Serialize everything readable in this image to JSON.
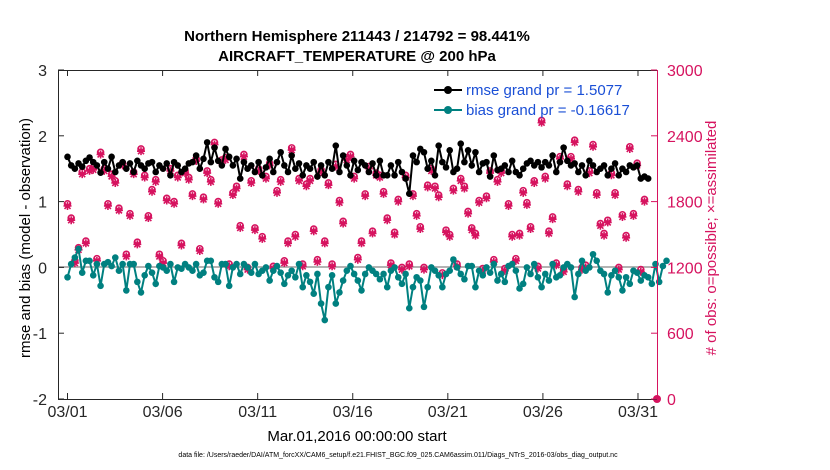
{
  "chart_data": {
    "type": "line",
    "title": "Northern Hemisphere 211443 / 214792 = 98.441%",
    "subtitle": "AIRCRAFT_TEMPERATURE @ 200 hPa",
    "xlabel": "Mar.01,2016 00:00:00 start",
    "ylabel": "rmse and bias (model - observation)",
    "y2label": "# of obs: o=possible; ×=assimilated",
    "footnote": "data file: /Users/raeder/DAI/ATM_forcXX/CAM6_setup/f.e21.FHIST_BGC.f09_025.CAM6assim.011/Diags_NTrS_2016-03/obs_diag_output.nc",
    "xlim": [
      0.5,
      32.0
    ],
    "ylim": [
      -2,
      3
    ],
    "y2lim": [
      0,
      3000
    ],
    "x_ticks": [
      1,
      6,
      11,
      16,
      21,
      26,
      31
    ],
    "x_tick_labels": [
      "03/01",
      "03/06",
      "03/11",
      "03/16",
      "03/21",
      "03/26",
      "03/31"
    ],
    "y_ticks": [
      -2,
      -1,
      0,
      1,
      2,
      3
    ],
    "y_tick_labels": [
      "-2",
      "-1",
      "0",
      "1",
      "2",
      "3"
    ],
    "y2_ticks": [
      0,
      600,
      1200,
      1800,
      2400,
      3000
    ],
    "y2_tick_labels": [
      "0",
      "600",
      "1200",
      "1800",
      "2400",
      "3000"
    ],
    "legend_position": "top-right",
    "colors": {
      "rmse": "#000000",
      "bias": "#008080",
      "obs": "#d6135f",
      "zero_line": "#b3b3b3",
      "legend_text": "#1a4fd6"
    },
    "series": [
      {
        "name": "rmse grand pr = 1.5077",
        "values": [
          1.68,
          1.55,
          1.5,
          1.58,
          1.53,
          1.62,
          1.67,
          1.6,
          1.55,
          1.44,
          1.6,
          1.5,
          1.68,
          1.45,
          1.55,
          1.6,
          1.5,
          1.58,
          1.45,
          1.62,
          1.55,
          1.5,
          1.58,
          1.6,
          1.45,
          1.55,
          1.5,
          1.58,
          1.4,
          1.6,
          1.55,
          1.45,
          1.5,
          1.58,
          1.6,
          1.7,
          1.5,
          1.65,
          1.9,
          1.6,
          1.82,
          1.62,
          1.55,
          1.8,
          1.68,
          1.55,
          1.65,
          1.35,
          1.6,
          1.5,
          1.55,
          1.45,
          1.6,
          1.4,
          1.52,
          1.65,
          1.45,
          1.6,
          1.75,
          1.55,
          1.45,
          1.7,
          1.5,
          1.58,
          1.4,
          1.55,
          1.5,
          1.6,
          1.38,
          1.55,
          1.4,
          1.6,
          1.5,
          1.85,
          1.45,
          1.7,
          1.55,
          1.4,
          1.62,
          1.48,
          1.6,
          1.55,
          1.45,
          1.58,
          1.4,
          1.62,
          1.4,
          1.4,
          1.55,
          1.4,
          1.6,
          1.45,
          1.35,
          1.12,
          1.7,
          1.6,
          1.8,
          1.75,
          1.5,
          1.62,
          1.4,
          1.85,
          1.6,
          1.52,
          1.78,
          1.45,
          1.5,
          1.88,
          1.6,
          1.78,
          1.55,
          1.75,
          1.45,
          1.58,
          1.6,
          1.38,
          1.7,
          1.48,
          1.5,
          1.55,
          1.45,
          1.62,
          1.45,
          1.4,
          1.5,
          1.58,
          1.62,
          1.55,
          1.6,
          1.52,
          1.6,
          1.55,
          1.7,
          1.45,
          1.6,
          1.82,
          1.62,
          1.55,
          1.58,
          1.45,
          1.55,
          1.4,
          1.62,
          1.55,
          1.45,
          1.5,
          1.55,
          1.4,
          1.5,
          1.58,
          1.4,
          1.5,
          1.45,
          1.55,
          1.52,
          1.55,
          1.35,
          1.38,
          1.35
        ]
      },
      {
        "name": "bias grand pr = -0.16617",
        "values": [
          -0.15,
          0.05,
          0.15,
          0.28,
          -0.08,
          0.1,
          0.1,
          -0.12,
          0.05,
          -0.28,
          0.05,
          0.08,
          0.02,
          0.15,
          -0.05,
          0.05,
          -0.35,
          0.05,
          0.05,
          -0.22,
          -0.38,
          -0.12,
          0.02,
          -0.08,
          -0.25,
          0.02,
          0.0,
          -0.05,
          0.05,
          -0.22,
          0.0,
          -0.02,
          0.05,
          0.0,
          -0.05,
          0.05,
          -0.12,
          -0.08,
          0.1,
          0.1,
          -0.15,
          -0.22,
          0.05,
          0.05,
          -0.28,
          0.0,
          0.05,
          -0.1,
          0.05,
          0.0,
          -0.08,
          0.05,
          -0.1,
          -0.05,
          0.0,
          -0.2,
          -0.05,
          0.02,
          -0.08,
          -0.25,
          -0.12,
          -0.05,
          -0.15,
          0.05,
          -0.3,
          -0.12,
          -0.22,
          -0.4,
          -0.1,
          -0.55,
          -0.8,
          -0.3,
          -0.12,
          -0.55,
          -0.38,
          -0.2,
          -0.05,
          0.02,
          -0.1,
          -0.2,
          -0.35,
          -0.1,
          0.0,
          -0.05,
          -0.1,
          -0.18,
          -0.1,
          -0.3,
          -0.05,
          0.0,
          -0.15,
          -0.25,
          -0.1,
          -0.62,
          -0.3,
          -0.15,
          -0.2,
          -0.6,
          -0.3,
          0.0,
          -0.05,
          -0.12,
          -0.3,
          -0.1,
          -0.05,
          0.12,
          0.0,
          -0.1,
          -0.18,
          0.02,
          0.02,
          -0.3,
          -0.05,
          -0.12,
          0.0,
          -0.08,
          0.05,
          -0.2,
          -0.1,
          -0.22,
          0.02,
          0.05,
          -0.05,
          -0.32,
          -0.25,
          0.0,
          -0.1,
          0.05,
          -0.15,
          -0.3,
          -0.1,
          -0.2,
          0.05,
          -0.15,
          -0.12,
          0.0,
          0.05,
          0.0,
          -0.45,
          -0.1,
          0.1,
          -0.05,
          0.0,
          0.2,
          0.1,
          -0.05,
          -0.1,
          -0.38,
          -0.12,
          -0.05,
          -0.15,
          -0.35,
          -0.15,
          -0.25,
          -0.05,
          -0.08,
          -0.2,
          -0.12,
          -0.15,
          -0.25,
          0.05,
          -0.22,
          0.02,
          0.1
        ]
      }
    ],
    "obs_possible": [
      1780,
      1650,
      1260,
      1380,
      2070,
      1440,
      2100,
      2110,
      1280,
      2250,
      2100,
      1780,
      2050,
      1990,
      1740,
      2150,
      1320,
      1690,
      2070,
      1430,
      2280,
      2040,
      1670,
      1910,
      2000,
      1320,
      1260,
      1830,
      2100,
      1800,
      2040,
      1420,
      2080,
      2020,
      1870,
      2190,
      1370,
      1840,
      2080,
      2000,
      2340,
      1800,
      2180,
      2200,
      1230,
      1880,
      1940,
      1580,
      2230,
      1200,
      1990,
      1560,
      2100,
      1480,
      2030,
      2150,
      1210,
      1900,
      2000,
      1260,
      1440,
      2290,
      1500,
      2010,
      1230,
      1960,
      2010,
      1550,
      1270,
      2090,
      1440,
      1970,
      1230,
      2140,
      1810,
      1620,
      2200,
      2230,
      2030,
      1290,
      1440,
      1870,
      2120,
      1530,
      2060,
      2040,
      1890,
      1650,
      1240,
      1520,
      1820,
      1200,
      2040,
      1230,
      1870,
      1690,
      1570,
      1200,
      1950,
      2100,
      1940,
      1860,
      1150,
      1540,
      1500,
      1920,
      1230,
      2010,
      1940,
      1710,
      1560,
      1510,
      1810,
      1190,
      1850,
      2080,
      1270,
      2000,
      2080,
      1190,
      1780,
      1500,
      1280,
      1510,
      1900,
      1790,
      1570,
      1990,
      1210,
      2540,
      2030,
      1530,
      1660,
      1240,
      2210,
      1180,
      1960,
      2210,
      2360,
      1910,
      1200,
      1220,
      2080,
      2320,
      1880,
      1600,
      1510,
      1630,
      2060,
      1880,
      1200,
      1680,
      1490,
      2300,
      1690,
      2150,
      1180,
      1820
    ],
    "obs_assimilated": [
      1760,
      1630,
      1240,
      1360,
      2050,
      1420,
      2080,
      2090,
      1260,
      2230,
      2080,
      1760,
      2030,
      1970,
      1720,
      2130,
      1300,
      1670,
      2050,
      1410,
      2260,
      2020,
      1650,
      1890,
      1980,
      1300,
      1240,
      1810,
      2080,
      1780,
      2020,
      1400,
      2060,
      2000,
      1850,
      2170,
      1350,
      1820,
      2060,
      1980,
      2320,
      1780,
      2160,
      2180,
      1210,
      1860,
      1920,
      1560,
      2210,
      1180,
      1970,
      1540,
      2080,
      1460,
      2010,
      2130,
      1190,
      1880,
      1980,
      1240,
      1420,
      2270,
      1480,
      1990,
      1210,
      1940,
      1990,
      1530,
      1250,
      2070,
      1420,
      1950,
      1210,
      2120,
      1790,
      1600,
      2180,
      2210,
      2010,
      1270,
      1420,
      1850,
      2100,
      1510,
      2040,
      2020,
      1870,
      1630,
      1220,
      1500,
      1800,
      1180,
      2020,
      1210,
      1850,
      1670,
      1550,
      1180,
      1930,
      2080,
      1920,
      1840,
      1130,
      1520,
      1480,
      1900,
      1210,
      1990,
      1920,
      1690,
      1540,
      1490,
      1790,
      1170,
      1830,
      2060,
      1250,
      1980,
      2060,
      1170,
      1760,
      1480,
      1260,
      1490,
      1880,
      1770,
      1550,
      1970,
      1190,
      2520,
      2010,
      1510,
      1640,
      1220,
      2190,
      1160,
      1940,
      2190,
      2340,
      1890,
      1180,
      1200,
      2060,
      2300,
      1860,
      1580,
      1490,
      1610,
      2040,
      1860,
      1180,
      1660,
      1470,
      2280,
      1670,
      2130,
      1160,
      1800
    ]
  }
}
